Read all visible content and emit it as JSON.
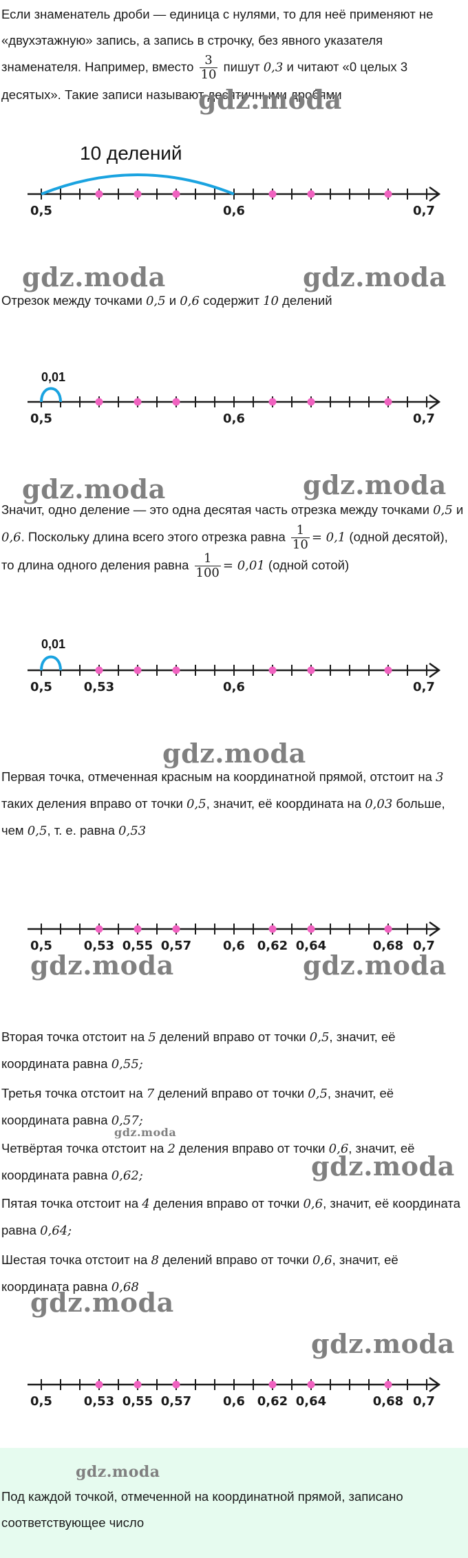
{
  "watermark": "gdz.moda",
  "intro": {
    "text_before": "Если знаменатель дроби — единица с нулями, то для неё применяют не «двухэтажную» запись, а запись в строчку, без явного указателя знаменателя. Например, вместо",
    "frac_num": "3",
    "frac_den": "10",
    "text_mid": "пишут",
    "value": "0,3",
    "text_after": "и читают «0 целых 3 десятых». Такие записи называют десятичными дробями"
  },
  "figure1": {
    "label": "10 делений",
    "ticks": [
      "0,5",
      "0,6",
      "0,7"
    ],
    "bracket_divisions": 10,
    "red_points": [
      0.53,
      0.55,
      0.57,
      0.62,
      0.64,
      0.68
    ]
  },
  "para2": {
    "text_1": "Отрезок между точками",
    "a": "0,5",
    "and": "и",
    "b": "0,6",
    "text_2": "содержит",
    "n": "10",
    "text_3": "делений"
  },
  "figure2": {
    "label": "0,01",
    "ticks": [
      "0,5",
      "0,6",
      "0,7"
    ],
    "red_points": [
      0.53,
      0.55,
      0.57,
      0.62,
      0.64,
      0.68
    ]
  },
  "para3": {
    "text_1": "Значит, одно деление — это одна десятая часть отрезка между точками",
    "a": "0,5",
    "and": "и",
    "b": "0,6",
    "text_2": ". Поскольку длина всего этого отрезка равна",
    "f1_num": "1",
    "f1_den": "10",
    "f1_val": "= 0,1",
    "text_3": "(одной десятой), то длина одного деления равна",
    "f2_num": "1",
    "f2_den": "100",
    "f2_val": "= 0,01",
    "text_4": "(одной сотой)"
  },
  "figure3": {
    "label": "0,01",
    "ticks": [
      "0,5",
      "0,53",
      "0,6",
      "0,7"
    ],
    "red_points": [
      0.53,
      0.55,
      0.57,
      0.62,
      0.64,
      0.68
    ]
  },
  "para4": {
    "text_1": "Первая точка, отмеченная красным на координатной прямой, отстоит на",
    "n": "3",
    "text_2": "таких деления вправо от точки",
    "a": "0,5",
    "text_3": ", значит, её координата на",
    "d": "0,03",
    "text_4": "больше, чем",
    "a2": "0,5",
    "text_5": ", т. е. равна",
    "v": "0,53"
  },
  "figure4": {
    "ticks": [
      "0,5",
      "0,53",
      "0,55",
      "0,57",
      "0,6",
      "0,62",
      "0,64",
      "0,68",
      "0,7"
    ],
    "red_points": [
      0.53,
      0.55,
      0.57,
      0.62,
      0.64,
      0.68
    ]
  },
  "list": [
    {
      "t1": "Вторая точка отстоит на",
      "n": "5",
      "t2": "делений вправо от точки",
      "p": "0,5",
      "t3": ", значит, её координата равна",
      "v": "0,55;"
    },
    {
      "t1": "Третья точка отстоит на",
      "n": "7",
      "t2": "делений вправо от точки",
      "p": "0,5",
      "t3": ", значит, её координата равна",
      "v": "0,57;"
    },
    {
      "t1": "Четвёртая точка отстоит на",
      "n": "2",
      "t2": "деления вправо от точки",
      "p": "0,6",
      "t3": ", значит, её координата равна",
      "v": "0,62;"
    },
    {
      "t1": "Пятая точка отстоит на",
      "n": "4",
      "t2": "деления вправо от точки",
      "p": "0,6",
      "t3": ", значит, её координата равна",
      "v": "0,64;"
    },
    {
      "t1": "Шестая точка отстоит на",
      "n": "8",
      "t2": "делений вправо от точки",
      "p": "0,6",
      "t3": ", значит, её координата равна",
      "v": "0,68"
    }
  ],
  "figure5": {
    "ticks": [
      "0,5",
      "0,53",
      "0,55",
      "0,57",
      "0,6",
      "0,62",
      "0,64",
      "0,68",
      "0,7"
    ],
    "red_points": [
      0.53,
      0.55,
      0.57,
      0.62,
      0.64,
      0.68
    ]
  },
  "callout": {
    "text": "Под каждой точкой, отмеченной на координатной прямой, записано соответствующее число"
  },
  "colors": {
    "axis": "#1a1a1a",
    "point": "#f062c0",
    "arc": "#1aa3e0",
    "callout_bg": "#e6fbef",
    "watermark": "#808080"
  }
}
